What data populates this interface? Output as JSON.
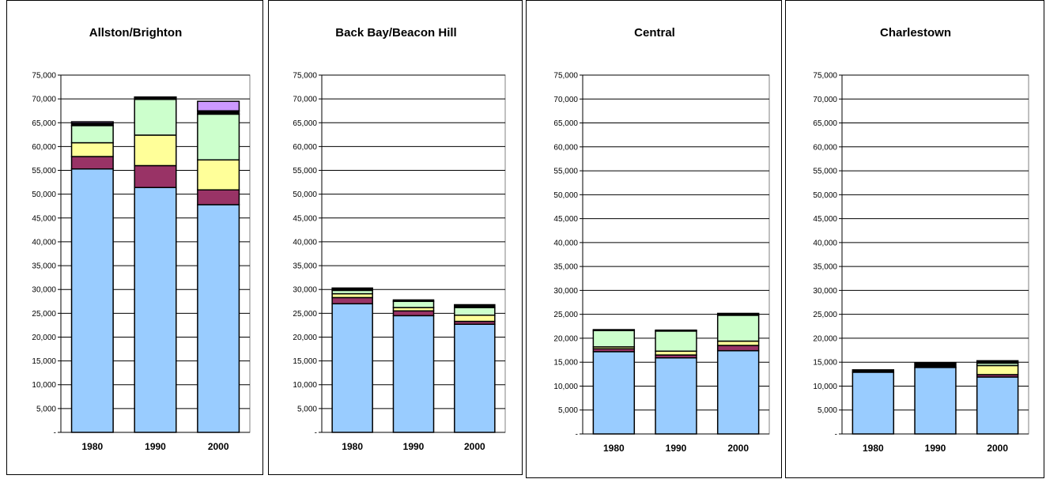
{
  "colors": {
    "seg1": "#99ccff",
    "seg2": "#993366",
    "seg3": "#ffff99",
    "seg4": "#ccffcc",
    "seg5": "#000000",
    "seg6": "#cc99ff",
    "outline": "#000000",
    "grid": "#000000"
  },
  "chart_data": [
    {
      "type": "bar",
      "stacked": true,
      "title": "Allston/Brighton",
      "categories": [
        "1980",
        "1990",
        "2000"
      ],
      "ylim": [
        0,
        75000
      ],
      "ytick_labels": [
        "-",
        "5,000",
        "10,000",
        "15,000",
        "20,000",
        "25,000",
        "30,000",
        "35,000",
        "40,000",
        "45,000",
        "50,000",
        "55,000",
        "60,000",
        "65,000",
        "70,000",
        "75,000"
      ],
      "grid": true,
      "series": [
        {
          "values": [
            55300,
            51400,
            47800
          ]
        },
        {
          "values": [
            2600,
            4600,
            3100
          ]
        },
        {
          "values": [
            2900,
            6400,
            6300
          ]
        },
        {
          "values": [
            3600,
            7500,
            9600
          ]
        },
        {
          "values": [
            500,
            400,
            700
          ]
        },
        {
          "values": [
            300,
            100,
            2000
          ]
        }
      ]
    },
    {
      "type": "bar",
      "stacked": true,
      "title": "Back Bay/Beacon Hill",
      "categories": [
        "1980",
        "1990",
        "2000"
      ],
      "ylim": [
        0,
        75000
      ],
      "ytick_labels": [
        "-",
        "5,000",
        "10,000",
        "15,000",
        "20,000",
        "25,000",
        "30,000",
        "35,000",
        "40,000",
        "45,000",
        "50,000",
        "55,000",
        "60,000",
        "65,000",
        "70,000",
        "75,000"
      ],
      "grid": true,
      "series": [
        {
          "values": [
            27000,
            24500,
            22700
          ]
        },
        {
          "values": [
            1300,
            1000,
            600
          ]
        },
        {
          "values": [
            800,
            700,
            1300
          ]
        },
        {
          "values": [
            700,
            1300,
            1600
          ]
        },
        {
          "values": [
            500,
            300,
            600
          ]
        },
        {
          "values": [
            0,
            0,
            0
          ]
        }
      ]
    },
    {
      "type": "bar",
      "stacked": true,
      "title": "Central",
      "categories": [
        "1980",
        "1990",
        "2000"
      ],
      "ylim": [
        0,
        75000
      ],
      "ytick_labels": [
        "-",
        "5,000",
        "10,000",
        "15,000",
        "20,000",
        "25,000",
        "30,000",
        "35,000",
        "40,000",
        "45,000",
        "50,000",
        "55,000",
        "60,000",
        "65,000",
        "70,000",
        "75,000"
      ],
      "grid": true,
      "series": [
        {
          "values": [
            17200,
            15900,
            17400
          ]
        },
        {
          "values": [
            600,
            600,
            1100
          ]
        },
        {
          "values": [
            400,
            800,
            900
          ]
        },
        {
          "values": [
            3400,
            4200,
            5400
          ]
        },
        {
          "values": [
            200,
            200,
            400
          ]
        },
        {
          "values": [
            0,
            0,
            0
          ]
        }
      ]
    },
    {
      "type": "bar",
      "stacked": true,
      "title": "Charlestown",
      "categories": [
        "1980",
        "1990",
        "2000"
      ],
      "ylim": [
        0,
        75000
      ],
      "ytick_labels": [
        "-",
        "5,000",
        "10,000",
        "15,000",
        "20,000",
        "25,000",
        "30,000",
        "35,000",
        "40,000",
        "45,000",
        "50,000",
        "55,000",
        "60,000",
        "65,000",
        "70,000",
        "75,000"
      ],
      "grid": true,
      "series": [
        {
          "values": [
            12900,
            13900,
            11900
          ]
        },
        {
          "values": [
            0,
            0,
            500
          ]
        },
        {
          "values": [
            0,
            0,
            1900
          ]
        },
        {
          "values": [
            0,
            0,
            500
          ]
        },
        {
          "values": [
            500,
            1000,
            500
          ]
        },
        {
          "values": [
            0,
            0,
            0
          ]
        }
      ]
    }
  ]
}
